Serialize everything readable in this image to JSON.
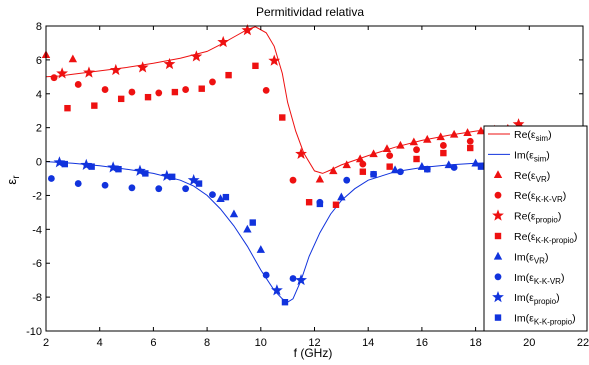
{
  "chart_data": {
    "type": "scatter",
    "title": "Permitividad relativa",
    "xlabel": "f (GHz)",
    "ylabel": {
      "base": "ε",
      "sub": "r"
    },
    "xlim": [
      2,
      22
    ],
    "ylim": [
      -10,
      8
    ],
    "xticks": [
      2,
      4,
      6,
      8,
      10,
      12,
      14,
      16,
      18,
      20,
      22
    ],
    "yticks": [
      8,
      6,
      4,
      2,
      0,
      -2,
      -4,
      -6,
      -8,
      -10
    ],
    "grid": false,
    "legend_position": "right",
    "colors": {
      "red": "#ee1111",
      "blue": "#1133dd",
      "axis": "#000000"
    },
    "series": [
      {
        "name": "Re(ε_sim)",
        "label": {
          "pre": "Re(ε",
          "sub": "sim",
          "post": ")"
        },
        "kind": "line",
        "color": "red",
        "x": [
          2.0,
          2.5,
          3.0,
          4.0,
          5.0,
          6.0,
          7.0,
          8.0,
          8.5,
          9.0,
          9.5,
          9.8,
          10.2,
          10.5,
          10.8,
          11.0,
          11.3,
          11.6,
          12.0,
          12.3,
          12.6,
          13.0,
          14.0,
          15.0,
          16.0,
          17.0,
          18.0,
          19.0,
          20.0
        ],
        "y": [
          5.0,
          5.05,
          5.15,
          5.35,
          5.55,
          5.8,
          6.1,
          6.5,
          6.9,
          7.35,
          7.8,
          7.95,
          7.6,
          6.8,
          5.2,
          3.5,
          1.8,
          0.5,
          -0.55,
          -0.7,
          -0.5,
          -0.2,
          0.35,
          0.85,
          1.25,
          1.55,
          1.8,
          2.0,
          2.1
        ]
      },
      {
        "name": "Im(ε_sim)",
        "label": {
          "pre": "Im(ε",
          "sub": "sim",
          "post": ")"
        },
        "kind": "line",
        "color": "blue",
        "x": [
          2.0,
          3.0,
          4.0,
          5.0,
          6.0,
          7.0,
          7.5,
          8.0,
          8.5,
          9.0,
          9.5,
          10.0,
          10.5,
          10.8,
          11.0,
          11.2,
          11.5,
          11.8,
          12.2,
          12.6,
          13.0,
          13.5,
          14.0,
          15.0,
          16.0,
          17.0,
          18.0,
          19.0,
          20.0
        ],
        "y": [
          0.0,
          -0.1,
          -0.25,
          -0.45,
          -0.7,
          -1.1,
          -1.45,
          -2.0,
          -2.8,
          -3.8,
          -5.0,
          -6.4,
          -7.6,
          -8.1,
          -8.3,
          -8.1,
          -7.0,
          -5.6,
          -4.2,
          -3.1,
          -2.3,
          -1.6,
          -1.1,
          -0.6,
          -0.35,
          -0.2,
          -0.1,
          -0.05,
          0.0
        ]
      },
      {
        "name": "Re(ε_VR)",
        "label": {
          "pre": "Re(ε",
          "sub": "VR",
          "post": ")"
        },
        "kind": "marker",
        "marker": "triangle",
        "color": "red",
        "x": [
          2.0,
          3.0,
          12.2,
          12.7,
          13.2,
          13.7,
          14.2,
          14.7,
          15.2,
          15.7,
          16.2,
          16.7,
          17.2,
          17.7,
          18.2,
          18.7,
          19.2,
          19.7
        ],
        "y": [
          6.3,
          6.05,
          -1.05,
          -0.55,
          -0.2,
          0.15,
          0.45,
          0.75,
          0.95,
          1.15,
          1.3,
          1.45,
          1.6,
          1.7,
          1.8,
          1.9,
          1.95,
          2.0
        ]
      },
      {
        "name": "Re(ε_K-K-VR)",
        "label": {
          "pre": "Re(ε",
          "sub": "K-K-VR",
          "post": ")"
        },
        "kind": "marker",
        "marker": "circle",
        "color": "red",
        "x": [
          2.3,
          3.2,
          4.2,
          5.2,
          6.2,
          7.2,
          8.2,
          10.2,
          11.2,
          13.8,
          14.8,
          15.8,
          16.8,
          17.8,
          18.8,
          19.8
        ],
        "y": [
          4.95,
          4.55,
          4.25,
          4.1,
          4.05,
          4.25,
          4.7,
          4.2,
          -1.1,
          -0.15,
          0.35,
          0.7,
          0.95,
          1.2,
          1.4,
          1.55
        ]
      },
      {
        "name": "Re(ε_propio)",
        "label": {
          "pre": "Re(ε",
          "sub": "propio",
          "post": ")"
        },
        "kind": "marker",
        "marker": "star",
        "color": "red",
        "x": [
          2.6,
          3.6,
          4.6,
          5.6,
          6.6,
          7.6,
          8.6,
          9.5,
          10.5,
          11.5,
          19.6
        ],
        "y": [
          5.2,
          5.25,
          5.4,
          5.55,
          5.75,
          6.2,
          7.05,
          7.75,
          5.95,
          0.45,
          2.2
        ]
      },
      {
        "name": "Re(ε_K-K-propio)",
        "label": {
          "pre": "Re(ε",
          "sub": "K-K-propio",
          "post": ")"
        },
        "kind": "marker",
        "marker": "square",
        "color": "red",
        "x": [
          2.8,
          3.8,
          4.8,
          5.8,
          6.8,
          7.8,
          8.8,
          9.8,
          10.8,
          11.8,
          12.8,
          13.8,
          14.8,
          15.8,
          16.8,
          17.8
        ],
        "y": [
          3.15,
          3.3,
          3.7,
          3.8,
          4.1,
          4.3,
          5.1,
          5.65,
          2.6,
          -2.4,
          -2.55,
          -0.6,
          -0.3,
          0.15,
          0.5,
          0.8
        ]
      },
      {
        "name": "Im(ε_VR)",
        "label": {
          "pre": "Im(ε",
          "sub": "VR",
          "post": ")"
        },
        "kind": "marker",
        "marker": "triangle",
        "color": "blue",
        "x": [
          8.5,
          9.0,
          9.5,
          10.0,
          13.0,
          15.0,
          16.0,
          17.0,
          18.0
        ],
        "y": [
          -2.2,
          -3.1,
          -4.0,
          -5.2,
          -2.1,
          -0.5,
          -0.3,
          -0.2,
          -0.1
        ]
      },
      {
        "name": "Im(ε_K-K-VR)",
        "label": {
          "pre": "Im(ε",
          "sub": "K-K-VR",
          "post": ")"
        },
        "kind": "marker",
        "marker": "circle",
        "color": "blue",
        "x": [
          2.2,
          3.2,
          4.2,
          5.2,
          6.2,
          7.2,
          8.2,
          10.2,
          11.2,
          12.2,
          13.2,
          14.2,
          15.2,
          16.2,
          17.2
        ],
        "y": [
          -1.0,
          -1.3,
          -1.4,
          -1.55,
          -1.6,
          -1.6,
          -1.95,
          -6.7,
          -6.9,
          -2.4,
          -1.1,
          -0.75,
          -0.6,
          -0.45,
          -0.35
        ]
      },
      {
        "name": "Im(ε_propio)",
        "label": {
          "pre": "Im(ε",
          "sub": "propio",
          "post": ")"
        },
        "kind": "marker",
        "marker": "star",
        "color": "blue",
        "x": [
          2.5,
          3.5,
          4.5,
          5.5,
          6.5,
          7.5,
          10.6,
          11.5
        ],
        "y": [
          -0.05,
          -0.2,
          -0.35,
          -0.55,
          -0.85,
          -1.1,
          -7.6,
          -7.0
        ]
      },
      {
        "name": "Im(ε_K-K-propio)",
        "label": {
          "pre": "Im(ε",
          "sub": "K-K-propio",
          "post": ")"
        },
        "kind": "marker",
        "marker": "square",
        "color": "blue",
        "x": [
          2.7,
          3.7,
          4.7,
          5.7,
          6.7,
          7.7,
          8.7,
          9.7,
          10.9,
          12.2,
          14.2,
          16.2,
          18.2
        ],
        "y": [
          -0.15,
          -0.3,
          -0.45,
          -0.7,
          -0.9,
          -1.3,
          -2.1,
          -3.6,
          -8.3,
          -2.5,
          -0.75,
          -0.45,
          -0.3
        ]
      }
    ]
  }
}
